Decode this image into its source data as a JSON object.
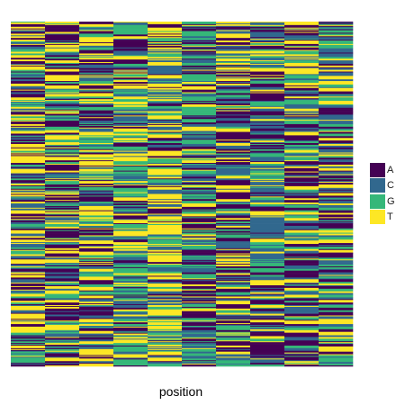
{
  "chart_data": {
    "type": "heatmap",
    "title": "",
    "xlabel": "position",
    "ylabel": "",
    "n_positions": 10,
    "n_sequences": 400,
    "categories": [
      "A",
      "C",
      "G",
      "T"
    ],
    "colors": {
      "A": "#440154",
      "C": "#31688e",
      "G": "#35b779",
      "T": "#fde725"
    },
    "legend_position": "right",
    "grid": false,
    "position_composition": [
      {
        "position": 1,
        "A": 0.3,
        "C": 0.2,
        "G": 0.2,
        "T": 0.3
      },
      {
        "position": 2,
        "A": 0.3,
        "C": 0.2,
        "G": 0.2,
        "T": 0.3
      },
      {
        "position": 3,
        "A": 0.3,
        "C": 0.2,
        "G": 0.2,
        "T": 0.3
      },
      {
        "position": 4,
        "A": 0.25,
        "C": 0.2,
        "G": 0.3,
        "T": 0.25
      },
      {
        "position": 5,
        "A": 0.15,
        "C": 0.2,
        "G": 0.2,
        "T": 0.45
      },
      {
        "position": 6,
        "A": 0.3,
        "C": 0.25,
        "G": 0.3,
        "T": 0.15
      },
      {
        "position": 7,
        "A": 0.3,
        "C": 0.3,
        "G": 0.15,
        "T": 0.25
      },
      {
        "position": 8,
        "A": 0.25,
        "C": 0.3,
        "G": 0.25,
        "T": 0.2
      },
      {
        "position": 9,
        "A": 0.3,
        "C": 0.25,
        "G": 0.2,
        "T": 0.25
      },
      {
        "position": 10,
        "A": 0.25,
        "C": 0.25,
        "G": 0.2,
        "T": 0.3
      }
    ]
  }
}
